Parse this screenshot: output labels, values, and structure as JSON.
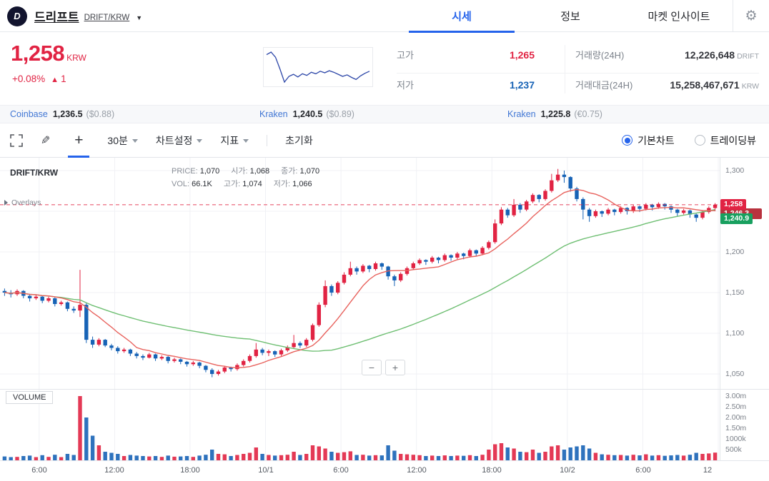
{
  "header": {
    "logo_letter": "D",
    "coin_name": "드리프트",
    "pair": "DRIFT/KRW",
    "tabs": [
      {
        "label": "시세"
      },
      {
        "label": "정보"
      },
      {
        "label": "마켓 인사이트"
      }
    ]
  },
  "icons": {
    "caret_down": "▼",
    "gear": "⚙",
    "pencil": "✎",
    "plus": "+",
    "change_arrow": "▲"
  },
  "summary": {
    "price": "1,258",
    "currency": "KRW",
    "change_pct": "+0.08%",
    "change_amount": "1",
    "stats": [
      {
        "label": "고가",
        "value": "1,265"
      },
      {
        "label": "저가",
        "value": "1,237"
      },
      {
        "label": "거래량(24H)",
        "value": "12,226,648",
        "unit": "DRIFT"
      },
      {
        "label": "거래대금(24H)",
        "value": "15,258,467,671",
        "unit": "KRW"
      }
    ],
    "sparkline": [
      1290,
      1295,
      1285,
      1262,
      1237,
      1248,
      1252,
      1247,
      1253,
      1250,
      1256,
      1253,
      1258,
      1255,
      1259,
      1256,
      1252,
      1248,
      1251,
      1246,
      1242,
      1249,
      1254,
      1258
    ]
  },
  "exchanges": [
    {
      "name": "Coinbase",
      "price": "1,236.5",
      "note": "($0.88)"
    },
    {
      "name": "Kraken",
      "price": "1,240.5",
      "note": "($0.89)"
    },
    {
      "name": "Kraken",
      "price": "1,225.8",
      "note": "(€0.75)"
    }
  ],
  "toolbar": {
    "interval": "30분",
    "chart_settings": "차트설정",
    "indicator": "지표",
    "reset": "초기화",
    "chart_type": [
      {
        "label": "기본차트",
        "selected": true
      },
      {
        "label": "트레이딩뷰",
        "selected": false
      }
    ]
  },
  "chart": {
    "symbol": "DRIFT/KRW",
    "info_rows": [
      [
        {
          "label": "PRICE:",
          "value": "1,070"
        },
        {
          "label": "시가:",
          "value": "1,068"
        },
        {
          "label": "종가:",
          "value": "1,070"
        }
      ],
      [
        {
          "label": "VOL:",
          "value": "66.1K"
        },
        {
          "label": "고가:",
          "value": "1,074"
        },
        {
          "label": "저가:",
          "value": "1,066"
        }
      ]
    ],
    "overlays_label": "Overlays",
    "volume_label": "VOLUME",
    "zoom_out": "−",
    "zoom_in": "+",
    "price_axis": [
      "1,300",
      "1,250",
      "1,200",
      "1,150",
      "1,100",
      "1,050"
    ],
    "volume_axis": [
      "3.00m",
      "2.50m",
      "2.00m",
      "1.50m",
      "1000k",
      "500k"
    ],
    "time_axis": [
      "6:00",
      "12:00",
      "18:00",
      "10/1",
      "6:00",
      "12:00",
      "18:00",
      "10/2",
      "6:00",
      "12"
    ],
    "badges": [
      {
        "text": "1,258"
      },
      {
        "text": "1,246.3"
      },
      {
        "text": "1,240.9"
      }
    ]
  },
  "chart_data": {
    "type": "candlestick",
    "interval": "30m",
    "unit": "KRW",
    "last_price": 1258,
    "ylim": [
      1030,
      1316
    ],
    "volume_full_scale_k": 3300,
    "ma": {
      "red_period": 9,
      "green_period": 40
    },
    "tick_indices": [
      6,
      18,
      30,
      42,
      54,
      66,
      78,
      90,
      102,
      114
    ],
    "candles": [
      [
        1152,
        1155,
        1146,
        1150,
        180
      ],
      [
        1150,
        1153,
        1144,
        1148,
        150
      ],
      [
        1148,
        1154,
        1146,
        1152,
        160
      ],
      [
        1152,
        1153,
        1143,
        1146,
        200
      ],
      [
        1146,
        1148,
        1139,
        1143,
        220
      ],
      [
        1143,
        1147,
        1141,
        1145,
        150
      ],
      [
        1145,
        1146,
        1137,
        1140,
        240
      ],
      [
        1140,
        1145,
        1138,
        1143,
        160
      ],
      [
        1143,
        1144,
        1133,
        1136,
        260
      ],
      [
        1136,
        1140,
        1134,
        1138,
        150
      ],
      [
        1138,
        1139,
        1127,
        1130,
        300
      ],
      [
        1130,
        1133,
        1125,
        1128,
        250
      ],
      [
        1128,
        1178,
        1120,
        1135,
        3000
      ],
      [
        1135,
        1137,
        1088,
        1092,
        2000
      ],
      [
        1092,
        1096,
        1082,
        1086,
        1150
      ],
      [
        1086,
        1094,
        1084,
        1092,
        700
      ],
      [
        1092,
        1093,
        1083,
        1085,
        400
      ],
      [
        1085,
        1087,
        1079,
        1082,
        350
      ],
      [
        1082,
        1084,
        1075,
        1078,
        300
      ],
      [
        1078,
        1082,
        1076,
        1080,
        200
      ],
      [
        1080,
        1081,
        1072,
        1075,
        250
      ],
      [
        1075,
        1077,
        1069,
        1072,
        220
      ],
      [
        1072,
        1074,
        1067,
        1070,
        200
      ],
      [
        1070,
        1076,
        1069,
        1074,
        180
      ],
      [
        1074,
        1075,
        1066,
        1069,
        200
      ],
      [
        1069,
        1073,
        1067,
        1071,
        160
      ],
      [
        1071,
        1072,
        1063,
        1066,
        220
      ],
      [
        1066,
        1070,
        1064,
        1068,
        170
      ],
      [
        1068,
        1069,
        1062,
        1065,
        180
      ],
      [
        1065,
        1066,
        1059,
        1062,
        200
      ],
      [
        1062,
        1066,
        1060,
        1064,
        160
      ],
      [
        1064,
        1065,
        1057,
        1060,
        220
      ],
      [
        1060,
        1061,
        1052,
        1055,
        260
      ],
      [
        1055,
        1057,
        1046,
        1050,
        500
      ],
      [
        1050,
        1055,
        1048,
        1053,
        300
      ],
      [
        1053,
        1060,
        1051,
        1058,
        280
      ],
      [
        1058,
        1059,
        1053,
        1056,
        200
      ],
      [
        1056,
        1063,
        1054,
        1061,
        250
      ],
      [
        1061,
        1068,
        1059,
        1066,
        300
      ],
      [
        1066,
        1074,
        1064,
        1072,
        350
      ],
      [
        1072,
        1088,
        1070,
        1080,
        600
      ],
      [
        1080,
        1082,
        1073,
        1076,
        300
      ],
      [
        1076,
        1080,
        1072,
        1078,
        250
      ],
      [
        1078,
        1079,
        1071,
        1074,
        220
      ],
      [
        1074,
        1081,
        1072,
        1079,
        240
      ],
      [
        1079,
        1085,
        1077,
        1083,
        260
      ],
      [
        1083,
        1098,
        1081,
        1088,
        400
      ],
      [
        1088,
        1090,
        1082,
        1085,
        250
      ],
      [
        1085,
        1094,
        1083,
        1092,
        300
      ],
      [
        1092,
        1112,
        1090,
        1110,
        700
      ],
      [
        1110,
        1138,
        1108,
        1135,
        650
      ],
      [
        1135,
        1165,
        1132,
        1158,
        550
      ],
      [
        1158,
        1160,
        1146,
        1150,
        400
      ],
      [
        1150,
        1164,
        1148,
        1162,
        350
      ],
      [
        1162,
        1175,
        1160,
        1172,
        380
      ],
      [
        1172,
        1188,
        1170,
        1180,
        420
      ],
      [
        1180,
        1182,
        1172,
        1176,
        250
      ],
      [
        1176,
        1185,
        1174,
        1183,
        260
      ],
      [
        1183,
        1184,
        1175,
        1179,
        220
      ],
      [
        1179,
        1188,
        1177,
        1186,
        240
      ],
      [
        1186,
        1187,
        1178,
        1182,
        230
      ],
      [
        1182,
        1183,
        1166,
        1170,
        700
      ],
      [
        1170,
        1172,
        1158,
        1165,
        450
      ],
      [
        1165,
        1175,
        1163,
        1173,
        300
      ],
      [
        1173,
        1182,
        1171,
        1180,
        280
      ],
      [
        1180,
        1188,
        1178,
        1186,
        260
      ],
      [
        1186,
        1192,
        1184,
        1190,
        240
      ],
      [
        1190,
        1191,
        1184,
        1188,
        200
      ],
      [
        1188,
        1195,
        1186,
        1193,
        220
      ],
      [
        1193,
        1194,
        1186,
        1190,
        200
      ],
      [
        1190,
        1198,
        1188,
        1196,
        230
      ],
      [
        1196,
        1197,
        1189,
        1193,
        200
      ],
      [
        1193,
        1200,
        1191,
        1198,
        220
      ],
      [
        1198,
        1199,
        1191,
        1195,
        210
      ],
      [
        1195,
        1204,
        1193,
        1202,
        240
      ],
      [
        1202,
        1203,
        1195,
        1198,
        200
      ],
      [
        1198,
        1207,
        1196,
        1205,
        260
      ],
      [
        1205,
        1214,
        1203,
        1212,
        500
      ],
      [
        1212,
        1240,
        1210,
        1235,
        750
      ],
      [
        1235,
        1255,
        1233,
        1252,
        800
      ],
      [
        1252,
        1254,
        1242,
        1245,
        600
      ],
      [
        1245,
        1265,
        1243,
        1258,
        550
      ],
      [
        1258,
        1260,
        1248,
        1252,
        400
      ],
      [
        1252,
        1264,
        1250,
        1262,
        380
      ],
      [
        1262,
        1272,
        1260,
        1270,
        500
      ],
      [
        1270,
        1271,
        1261,
        1265,
        350
      ],
      [
        1265,
        1277,
        1263,
        1275,
        400
      ],
      [
        1275,
        1296,
        1273,
        1288,
        650
      ],
      [
        1288,
        1302,
        1286,
        1295,
        700
      ],
      [
        1295,
        1300,
        1285,
        1292,
        500
      ],
      [
        1292,
        1293,
        1274,
        1278,
        600
      ],
      [
        1278,
        1280,
        1262,
        1265,
        650
      ],
      [
        1265,
        1267,
        1240,
        1252,
        700
      ],
      [
        1252,
        1254,
        1237,
        1244,
        550
      ],
      [
        1244,
        1252,
        1242,
        1250,
        350
      ],
      [
        1250,
        1251,
        1243,
        1247,
        280
      ],
      [
        1247,
        1254,
        1245,
        1252,
        260
      ],
      [
        1252,
        1253,
        1245,
        1249,
        240
      ],
      [
        1249,
        1256,
        1247,
        1254,
        250
      ],
      [
        1254,
        1255,
        1246,
        1250,
        220
      ],
      [
        1250,
        1258,
        1248,
        1256,
        260
      ],
      [
        1256,
        1257,
        1249,
        1253,
        230
      ],
      [
        1253,
        1260,
        1251,
        1258,
        280
      ],
      [
        1258,
        1259,
        1251,
        1255,
        220
      ],
      [
        1255,
        1261,
        1253,
        1259,
        240
      ],
      [
        1259,
        1260,
        1252,
        1256,
        210
      ],
      [
        1256,
        1257,
        1248,
        1252,
        230
      ],
      [
        1252,
        1253,
        1244,
        1248,
        250
      ],
      [
        1248,
        1253,
        1246,
        1251,
        220
      ],
      [
        1251,
        1252,
        1242,
        1246,
        260
      ],
      [
        1246,
        1247,
        1237,
        1242,
        350
      ],
      [
        1242,
        1251,
        1240,
        1249,
        300
      ],
      [
        1249,
        1256,
        1247,
        1254,
        320
      ],
      [
        1254,
        1260,
        1250,
        1258,
        360
      ]
    ]
  },
  "colors": {
    "up": "#e12343",
    "down": "#1763b6",
    "ma_fast": "#e8625d",
    "ma_slow": "#6fbf73",
    "last_price_line": "#e12343",
    "grid": "#f0f1f5",
    "spark": "#2c46a8",
    "accent": "#2563eb"
  }
}
